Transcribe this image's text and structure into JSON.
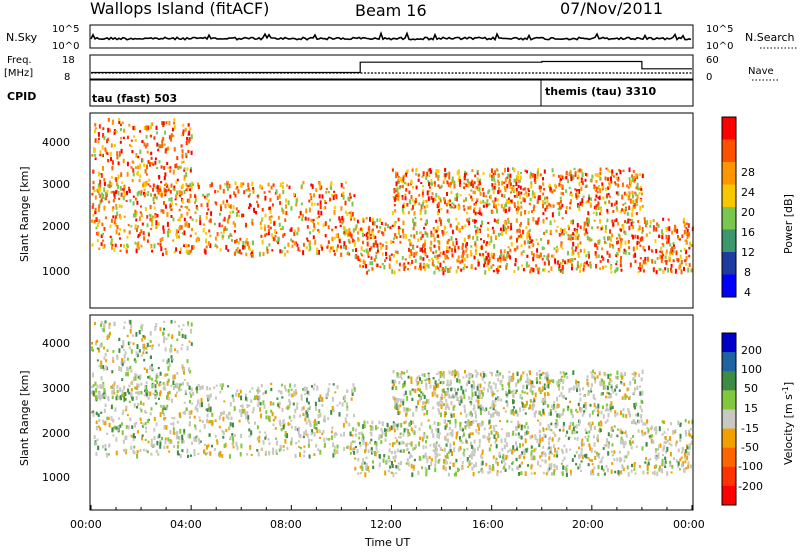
{
  "header": {
    "title": "Wallops Island (fitACF)",
    "beam": "Beam 16",
    "date": "07/Nov/2011"
  },
  "noise_panel": {
    "left_label": "N.Sky",
    "right_label": "N.Search",
    "left_ticks": [
      "10^5",
      "10^0"
    ],
    "right_ticks": [
      "10^5",
      "10^0"
    ]
  },
  "freq_panel": {
    "left_label_line1": "Freq.",
    "left_label_line2": "[MHz]",
    "right_label": "Nave",
    "left_ticks": [
      "18",
      "8"
    ],
    "right_ticks": [
      "60",
      "0"
    ],
    "nave_steps": [
      {
        "from_hour": 0,
        "to_hour": 10.75,
        "nave": 15
      },
      {
        "from_hour": 10.75,
        "to_hour": 18.0,
        "nave": 43
      },
      {
        "from_hour": 18.0,
        "to_hour": 22.0,
        "nave": 45
      },
      {
        "from_hour": 22.0,
        "to_hour": 24.0,
        "nave": 25
      }
    ]
  },
  "cpid": {
    "label": "CPID",
    "segments": [
      {
        "label": "tau (fast) 503",
        "from_hour": 0
      },
      {
        "label": "themis (tau) 3310",
        "from_hour": 18.0
      }
    ]
  },
  "chart_data": [
    {
      "type": "heatmap",
      "name": "power",
      "ylabel": "Slant Range [km]",
      "y_ticks": [
        "4000",
        "3000",
        "2000",
        "1000"
      ],
      "ylim": [
        180,
        4500
      ],
      "x_range_hours": [
        0,
        24
      ],
      "colorbar_label": "Power [dB]",
      "colorbar_ticks": [
        "28",
        "24",
        "20",
        "16",
        "12",
        "8",
        "4"
      ],
      "colorbar_colors": [
        "#ff0000",
        "#ff5000",
        "#ff9600",
        "#f5c800",
        "#78c850",
        "#3c966e",
        "#1e3ca0",
        "#0000ff"
      ],
      "echo_bands": [
        {
          "start_hour": 0.0,
          "end_hour": 4.0,
          "range_start_km": 2700,
          "range_end_km": 4400
        },
        {
          "start_hour": 0.0,
          "end_hour": 10.5,
          "range_start_km": 1400,
          "range_end_km": 3000
        },
        {
          "start_hour": 10.5,
          "end_hour": 24.0,
          "range_start_km": 1000,
          "range_end_km": 2200
        },
        {
          "start_hour": 12.0,
          "end_hour": 22.0,
          "range_start_km": 2300,
          "range_end_km": 3300
        }
      ]
    },
    {
      "type": "heatmap",
      "name": "velocity",
      "ylabel": "Slant Range [km]",
      "y_ticks": [
        "4000",
        "3000",
        "2000",
        "1000"
      ],
      "ylim": [
        180,
        4500
      ],
      "x_range_hours": [
        0,
        24
      ],
      "colorbar_label": "Velocity [m s",
      "colorbar_label_sup": "-1",
      "colorbar_label_end": "]",
      "colorbar_ticks": [
        "200",
        "100",
        "50",
        "15",
        "-15",
        "-50",
        "-100",
        "-200"
      ],
      "colorbar_colors": [
        "#0000c8",
        "#1e64a0",
        "#3c8c46",
        "#82c83c",
        "#c8c8c0",
        "#f0a000",
        "#ff6400",
        "#ff3200",
        "#ff0000"
      ],
      "echo_bands": [
        {
          "start_hour": 0.0,
          "end_hour": 4.0,
          "range_start_km": 2700,
          "range_end_km": 4400
        },
        {
          "start_hour": 0.0,
          "end_hour": 10.5,
          "range_start_km": 1400,
          "range_end_km": 3000
        },
        {
          "start_hour": 10.5,
          "end_hour": 24.0,
          "range_start_km": 1000,
          "range_end_km": 2200
        },
        {
          "start_hour": 12.0,
          "end_hour": 22.0,
          "range_start_km": 2300,
          "range_end_km": 3300
        }
      ]
    }
  ],
  "x_axis": {
    "label": "Time UT",
    "ticks": [
      "00:00",
      "04:00",
      "08:00",
      "12:00",
      "16:00",
      "20:00",
      "00:00"
    ]
  }
}
